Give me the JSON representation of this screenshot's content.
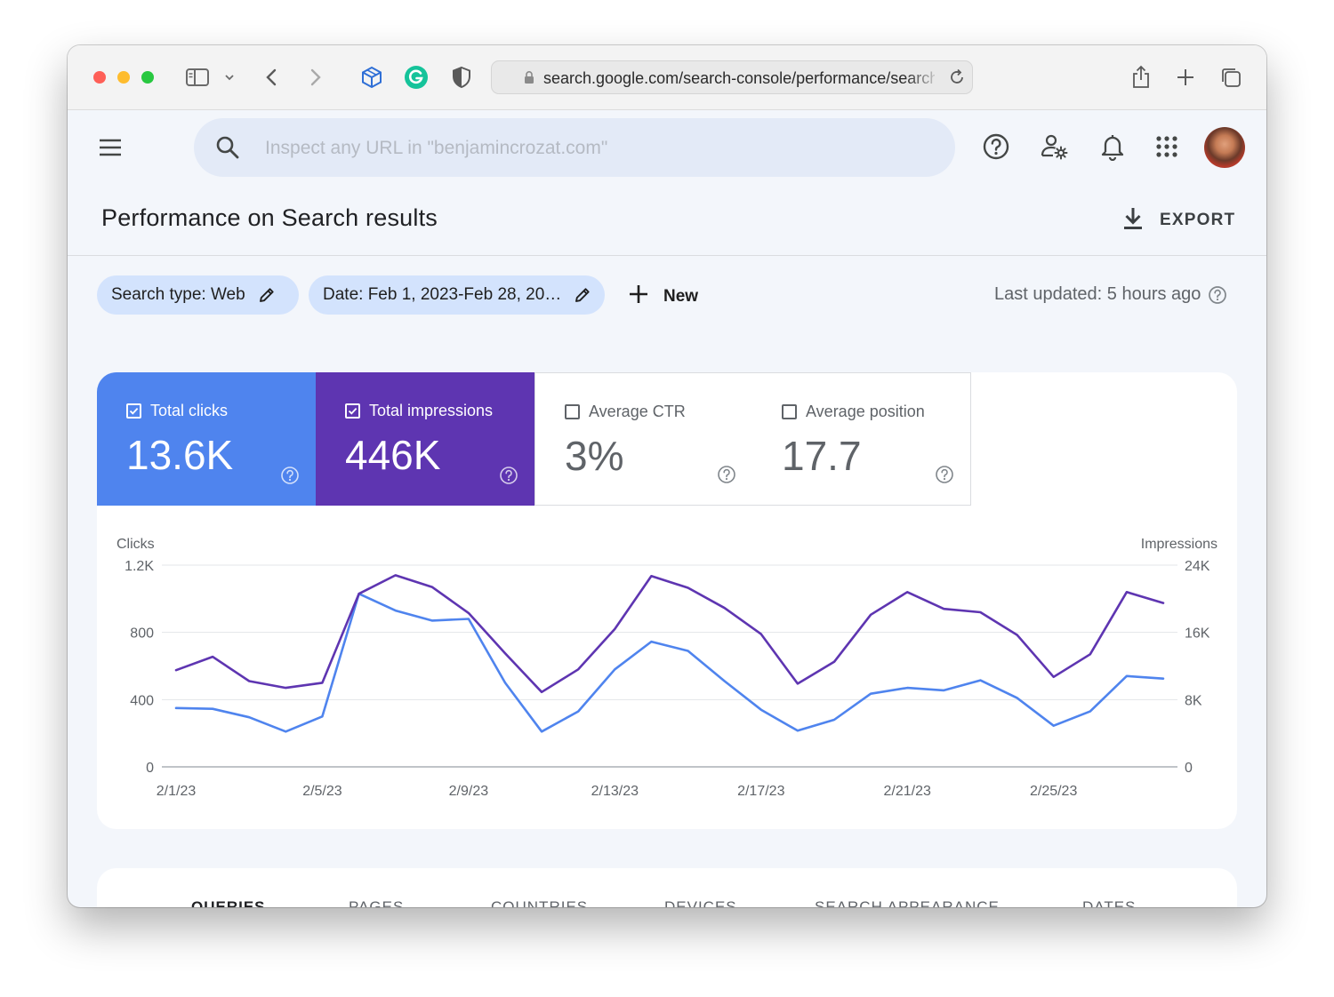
{
  "browser": {
    "url": "search.google.com/search-console/performance/search-analytics"
  },
  "header": {
    "search_placeholder": "Inspect any URL in \"benjamincrozat.com\"",
    "icons": [
      "menu-icon",
      "search-icon",
      "help-icon",
      "admin-settings-icon",
      "notifications-icon",
      "apps-grid-icon",
      "avatar"
    ]
  },
  "page": {
    "title": "Performance on Search results",
    "export_label": "EXPORT"
  },
  "filters": {
    "search_type": "Search type: Web",
    "date": "Date: Feb 1, 2023-Feb 28, 20…",
    "new_label": "New",
    "last_updated": "Last updated: 5 hours ago"
  },
  "metrics": {
    "clicks": {
      "label": "Total clicks",
      "value": "13.6K",
      "checked": true
    },
    "impressions": {
      "label": "Total impressions",
      "value": "446K",
      "checked": true
    },
    "ctr": {
      "label": "Average CTR",
      "value": "3%",
      "checked": false
    },
    "position": {
      "label": "Average position",
      "value": "17.7",
      "checked": false
    }
  },
  "colors": {
    "clicks": "#4f84ee",
    "impressions": "#5e35b1"
  },
  "chart_data": {
    "type": "line",
    "x": [
      "2/1/23",
      "2/2/23",
      "2/3/23",
      "2/4/23",
      "2/5/23",
      "2/6/23",
      "2/7/23",
      "2/8/23",
      "2/9/23",
      "2/10/23",
      "2/11/23",
      "2/12/23",
      "2/13/23",
      "2/14/23",
      "2/15/23",
      "2/16/23",
      "2/17/23",
      "2/18/23",
      "2/19/23",
      "2/20/23",
      "2/21/23",
      "2/22/23",
      "2/23/23",
      "2/24/23",
      "2/25/23",
      "2/26/23",
      "2/27/23",
      "2/28/23"
    ],
    "x_tick_labels": [
      "2/1/23",
      "2/5/23",
      "2/9/23",
      "2/13/23",
      "2/17/23",
      "2/21/23",
      "2/25/23"
    ],
    "ylabel": "Clicks",
    "y2label": "Impressions",
    "ylim": [
      0,
      1200
    ],
    "y2lim": [
      0,
      24000
    ],
    "y_ticks": [
      "0",
      "400",
      "800",
      "1.2K"
    ],
    "y2_ticks": [
      "0",
      "8K",
      "16K",
      "24K"
    ],
    "grid": true,
    "series": [
      {
        "name": "Clicks",
        "axis": "left",
        "values": [
          350,
          345,
          295,
          210,
          300,
          1030,
          930,
          870,
          880,
          500,
          210,
          330,
          580,
          745,
          690,
          510,
          340,
          215,
          280,
          435,
          470,
          455,
          515,
          410,
          245,
          330,
          540,
          525
        ]
      },
      {
        "name": "Impressions",
        "axis": "right",
        "values": [
          11500,
          13100,
          10200,
          9400,
          10000,
          20600,
          22800,
          21400,
          18300,
          13500,
          8900,
          11600,
          16400,
          22700,
          21300,
          18900,
          15800,
          9900,
          12500,
          18100,
          20800,
          18800,
          18400,
          15700,
          10700,
          13400,
          20800,
          19500
        ]
      }
    ]
  },
  "tabs": [
    {
      "label": "QUERIES",
      "active": true
    },
    {
      "label": "PAGES",
      "active": false
    },
    {
      "label": "COUNTRIES",
      "active": false
    },
    {
      "label": "DEVICES",
      "active": false
    },
    {
      "label": "SEARCH APPEARANCE",
      "active": false
    },
    {
      "label": "DATES",
      "active": false
    }
  ]
}
